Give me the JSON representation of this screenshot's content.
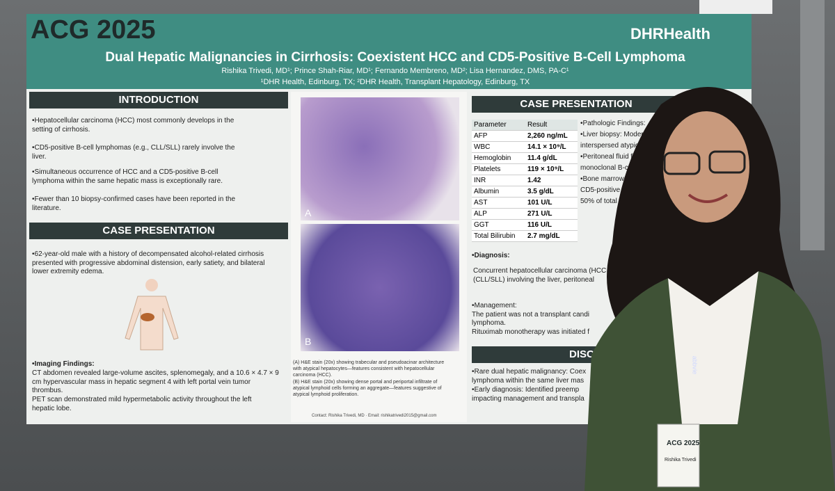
{
  "poster": {
    "logo": "ACG 2025",
    "sponsor": "DHRHealth",
    "title": "Dual Hepatic Malignancies in Cirrhosis: Coexistent HCC and CD5-Positive B-Cell Lymphoma",
    "authors": "Rishika Trivedi, MD¹; Prince Shah-Riar, MD¹; Fernando Membreno, MD²; Lisa Hernandez, DMS, PA-C¹",
    "affiliations": "¹DHR Health, Edinburg, TX; ²DHR Health, Transplant Hepatology, Edinburg, TX",
    "introduction": {
      "heading": "INTRODUCTION",
      "bullets": [
        "•Hepatocellular carcinoma (HCC) most commonly develops in the setting of cirrhosis.",
        "•CD5-positive B-cell lymphomas (e.g., CLL/SLL) rarely involve the liver.",
        "•Simultaneous occurrence of HCC and a CD5-positive B-cell lymphoma within the same hepatic mass is exceptionally rare.",
        "•Fewer than 10 biopsy-confirmed cases have been reported in the literature."
      ]
    },
    "case_left": {
      "heading": "CASE PRESENTATION",
      "history": "•62-year-old male with a history of decompensated alcohol-related cirrhosis presented with progressive abdominal distension, early satiety, and bilateral lower extremity edema.",
      "imaging_heading": "•Imaging Findings:",
      "imaging": "CT abdomen revealed large-volume ascites, splenomegaly, and a 10.6 × 4.7 × 9 cm hypervascular mass in hepatic segment 4 with left portal vein tumor thrombus.",
      "pet": "PET scan demonstrated mild hypermetabolic activity throughout the left hepatic lobe."
    },
    "figure": {
      "label_a": "A",
      "label_b": "B",
      "caption_a": "(A) H&E stain (20x) showing trabecular and pseudoacinar architecture with atypical hepatocytes—features consistent with hepatocellular carcinoma (HCC).",
      "caption_b": "(B) H&E stain (20x) showing dense portal and periportal infiltrate of atypical lymphoid cells forming an aggregate—features suggestive of atypical lymphoid proliferation.",
      "contact": "Contact: Rishika Trivedi, MD · Email: rishikatrivedi2015@gmail.com"
    },
    "case_right": {
      "heading": "CASE PRESENTATION",
      "table": {
        "header": [
          "Parameter",
          "Result"
        ],
        "rows": [
          [
            "AFP",
            "2,260 ng/mL"
          ],
          [
            "WBC",
            "14.1 × 10⁹/L"
          ],
          [
            "Hemoglobin",
            "11.4 g/dL"
          ],
          [
            "Platelets",
            "119 × 10⁹/L"
          ],
          [
            "INR",
            "1.42"
          ],
          [
            "Albumin",
            "3.5 g/dL"
          ],
          [
            "AST",
            "101 U/L"
          ],
          [
            "ALP",
            "271 U/L"
          ],
          [
            "GGT",
            "116 U/L"
          ],
          [
            "Total Bilirubin",
            "2.7 mg/dL"
          ]
        ]
      },
      "pathology": [
        "•Pathologic Findings:",
        "•Liver biopsy: Moderat",
        "interspersed atypical l",
        "•Peritoneal fluid flow",
        "monoclonal B-cell p",
        "•Bone marrow a",
        "CD5-positive",
        "50% of total c"
      ],
      "diagnosis_heading": "•Diagnosis:",
      "diagnosis": [
        "Concurrent hepatocellular carcinoma (HCC",
        "(CLL/SLL) involving the liver, peritoneal"
      ],
      "management": [
        "•Management:",
        "The patient was not a transplant candi",
        "lymphoma.",
        "Rituximab monotherapy was initiated f"
      ]
    },
    "discussion": {
      "heading": "DISC",
      "bullets": [
        "•Rare dual hepatic malignancy: Coex",
        "lymphoma within the same liver mas",
        "•Early diagnosis: Identified preemp",
        "impacting management and transpla"
      ]
    }
  },
  "badge": {
    "event": "ACG 2025",
    "name": "Rishika Trivedi",
    "lanyard": "abbvie"
  }
}
